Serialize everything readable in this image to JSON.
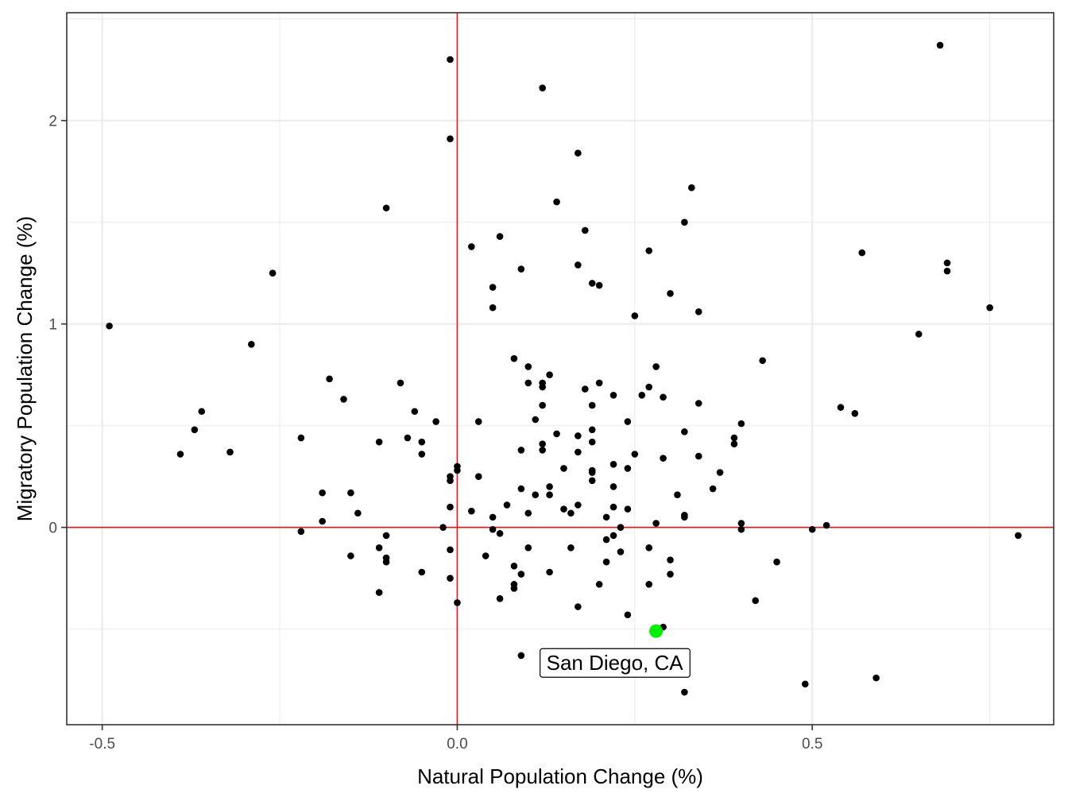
{
  "chart_data": {
    "type": "scatter",
    "title": "",
    "xlabel": "Natural Population Change (%)",
    "ylabel": "Migratory Population Change (%)",
    "xlim": [
      -0.55,
      0.84
    ],
    "ylim": [
      -0.97,
      2.53
    ],
    "x_ticks": [
      {
        "value": -0.5,
        "label": "-0.5"
      },
      {
        "value": 0.0,
        "label": "0.0"
      },
      {
        "value": 0.5,
        "label": "0.5"
      }
    ],
    "y_ticks": [
      {
        "value": 0,
        "label": "0"
      },
      {
        "value": 1,
        "label": "1"
      },
      {
        "value": 2,
        "label": "2"
      }
    ],
    "grid": true,
    "reference_lines": {
      "x": 0,
      "y": 0,
      "color": "#e41a1c"
    },
    "colors": {
      "points": "#000000",
      "highlight": "#00ee00",
      "reference": "#e41a1c",
      "panel_border": "#333333",
      "grid": "#ebebeb"
    },
    "highlight": {
      "label": "San Diego, CA",
      "x": 0.28,
      "y": -0.51
    },
    "points": [
      {
        "x": -0.49,
        "y": 0.99
      },
      {
        "x": -0.39,
        "y": 0.36
      },
      {
        "x": -0.37,
        "y": 0.48
      },
      {
        "x": -0.36,
        "y": 0.57
      },
      {
        "x": -0.32,
        "y": 0.37
      },
      {
        "x": -0.29,
        "y": 0.9
      },
      {
        "x": -0.26,
        "y": 1.25
      },
      {
        "x": -0.22,
        "y": 0.44
      },
      {
        "x": -0.22,
        "y": -0.02
      },
      {
        "x": -0.19,
        "y": 0.17
      },
      {
        "x": -0.19,
        "y": 0.03
      },
      {
        "x": -0.18,
        "y": 0.73
      },
      {
        "x": -0.16,
        "y": 0.63
      },
      {
        "x": -0.15,
        "y": 0.17
      },
      {
        "x": -0.15,
        "y": -0.14
      },
      {
        "x": -0.14,
        "y": 0.07
      },
      {
        "x": -0.11,
        "y": 0.42
      },
      {
        "x": -0.11,
        "y": -0.1
      },
      {
        "x": -0.11,
        "y": -0.32
      },
      {
        "x": -0.1,
        "y": -0.04
      },
      {
        "x": -0.1,
        "y": -0.15
      },
      {
        "x": -0.1,
        "y": -0.17
      },
      {
        "x": -0.1,
        "y": 1.57
      },
      {
        "x": -0.08,
        "y": 0.71
      },
      {
        "x": -0.07,
        "y": 0.44
      },
      {
        "x": -0.06,
        "y": 0.57
      },
      {
        "x": -0.05,
        "y": 0.42
      },
      {
        "x": -0.05,
        "y": 0.36
      },
      {
        "x": -0.05,
        "y": -0.22
      },
      {
        "x": -0.03,
        "y": 0.52
      },
      {
        "x": -0.02,
        "y": 0.0
      },
      {
        "x": -0.01,
        "y": 0.25
      },
      {
        "x": -0.01,
        "y": 0.23
      },
      {
        "x": -0.01,
        "y": 0.1
      },
      {
        "x": -0.01,
        "y": -0.11
      },
      {
        "x": -0.01,
        "y": -0.25
      },
      {
        "x": -0.01,
        "y": 1.91
      },
      {
        "x": -0.01,
        "y": 2.3
      },
      {
        "x": 0.0,
        "y": 0.3
      },
      {
        "x": 0.0,
        "y": 0.28
      },
      {
        "x": 0.0,
        "y": -0.37
      },
      {
        "x": 0.02,
        "y": 1.38
      },
      {
        "x": 0.02,
        "y": 0.08
      },
      {
        "x": 0.03,
        "y": 0.52
      },
      {
        "x": 0.03,
        "y": 0.25
      },
      {
        "x": 0.04,
        "y": -0.14
      },
      {
        "x": 0.05,
        "y": 1.18
      },
      {
        "x": 0.05,
        "y": 1.08
      },
      {
        "x": 0.05,
        "y": 0.05
      },
      {
        "x": 0.05,
        "y": -0.01
      },
      {
        "x": 0.06,
        "y": 1.43
      },
      {
        "x": 0.06,
        "y": -0.03
      },
      {
        "x": 0.06,
        "y": -0.35
      },
      {
        "x": 0.07,
        "y": 0.11
      },
      {
        "x": 0.08,
        "y": 0.83
      },
      {
        "x": 0.08,
        "y": -0.19
      },
      {
        "x": 0.08,
        "y": -0.3
      },
      {
        "x": 0.08,
        "y": -0.28
      },
      {
        "x": 0.09,
        "y": 1.27
      },
      {
        "x": 0.09,
        "y": 0.38
      },
      {
        "x": 0.09,
        "y": 0.19
      },
      {
        "x": 0.09,
        "y": -0.23
      },
      {
        "x": 0.09,
        "y": -0.63
      },
      {
        "x": 0.1,
        "y": 0.79
      },
      {
        "x": 0.1,
        "y": 0.71
      },
      {
        "x": 0.1,
        "y": 0.07
      },
      {
        "x": 0.1,
        "y": -0.1
      },
      {
        "x": 0.11,
        "y": 0.53
      },
      {
        "x": 0.11,
        "y": 0.16
      },
      {
        "x": 0.12,
        "y": 2.16
      },
      {
        "x": 0.12,
        "y": 0.71
      },
      {
        "x": 0.12,
        "y": 0.69
      },
      {
        "x": 0.12,
        "y": 0.6
      },
      {
        "x": 0.12,
        "y": 0.41
      },
      {
        "x": 0.12,
        "y": 0.38
      },
      {
        "x": 0.13,
        "y": 0.75
      },
      {
        "x": 0.13,
        "y": 0.2
      },
      {
        "x": 0.13,
        "y": 0.16
      },
      {
        "x": 0.13,
        "y": -0.22
      },
      {
        "x": 0.14,
        "y": 1.6
      },
      {
        "x": 0.14,
        "y": 0.46
      },
      {
        "x": 0.15,
        "y": 0.29
      },
      {
        "x": 0.15,
        "y": 0.09
      },
      {
        "x": 0.16,
        "y": 0.07
      },
      {
        "x": 0.16,
        "y": -0.1
      },
      {
        "x": 0.17,
        "y": 1.84
      },
      {
        "x": 0.17,
        "y": 1.29
      },
      {
        "x": 0.17,
        "y": 0.45
      },
      {
        "x": 0.17,
        "y": 0.37
      },
      {
        "x": 0.17,
        "y": 0.11
      },
      {
        "x": 0.17,
        "y": -0.39
      },
      {
        "x": 0.18,
        "y": 1.46
      },
      {
        "x": 0.18,
        "y": 0.68
      },
      {
        "x": 0.19,
        "y": 1.2
      },
      {
        "x": 0.19,
        "y": 0.6
      },
      {
        "x": 0.19,
        "y": 0.48
      },
      {
        "x": 0.19,
        "y": 0.42
      },
      {
        "x": 0.19,
        "y": 0.28
      },
      {
        "x": 0.19,
        "y": 0.27
      },
      {
        "x": 0.19,
        "y": 0.23
      },
      {
        "x": 0.2,
        "y": 1.19
      },
      {
        "x": 0.2,
        "y": 0.71
      },
      {
        "x": 0.2,
        "y": -0.28
      },
      {
        "x": 0.21,
        "y": 0.05
      },
      {
        "x": 0.21,
        "y": -0.06
      },
      {
        "x": 0.21,
        "y": -0.17
      },
      {
        "x": 0.22,
        "y": 0.65
      },
      {
        "x": 0.22,
        "y": 0.31
      },
      {
        "x": 0.22,
        "y": 0.2
      },
      {
        "x": 0.22,
        "y": 0.1
      },
      {
        "x": 0.22,
        "y": -0.04
      },
      {
        "x": 0.23,
        "y": 0.0
      },
      {
        "x": 0.23,
        "y": -0.12
      },
      {
        "x": 0.24,
        "y": 0.52
      },
      {
        "x": 0.24,
        "y": 0.29
      },
      {
        "x": 0.24,
        "y": 0.09
      },
      {
        "x": 0.24,
        "y": -0.43
      },
      {
        "x": 0.25,
        "y": 1.04
      },
      {
        "x": 0.25,
        "y": 0.36
      },
      {
        "x": 0.26,
        "y": 0.65
      },
      {
        "x": 0.27,
        "y": 1.36
      },
      {
        "x": 0.27,
        "y": 0.69
      },
      {
        "x": 0.27,
        "y": -0.1
      },
      {
        "x": 0.27,
        "y": -0.28
      },
      {
        "x": 0.28,
        "y": 0.79
      },
      {
        "x": 0.28,
        "y": 0.02
      },
      {
        "x": 0.29,
        "y": 0.64
      },
      {
        "x": 0.29,
        "y": 0.34
      },
      {
        "x": 0.29,
        "y": -0.49
      },
      {
        "x": 0.3,
        "y": 1.15
      },
      {
        "x": 0.3,
        "y": -0.16
      },
      {
        "x": 0.3,
        "y": -0.23
      },
      {
        "x": 0.31,
        "y": 0.16
      },
      {
        "x": 0.32,
        "y": 1.5
      },
      {
        "x": 0.32,
        "y": 0.47
      },
      {
        "x": 0.32,
        "y": 0.06
      },
      {
        "x": 0.32,
        "y": 0.05
      },
      {
        "x": 0.32,
        "y": -0.81
      },
      {
        "x": 0.33,
        "y": 1.67
      },
      {
        "x": 0.34,
        "y": 1.06
      },
      {
        "x": 0.34,
        "y": 0.61
      },
      {
        "x": 0.34,
        "y": 0.35
      },
      {
        "x": 0.36,
        "y": 0.19
      },
      {
        "x": 0.37,
        "y": 0.27
      },
      {
        "x": 0.39,
        "y": 0.44
      },
      {
        "x": 0.39,
        "y": 0.41
      },
      {
        "x": 0.4,
        "y": 0.51
      },
      {
        "x": 0.4,
        "y": 0.02
      },
      {
        "x": 0.4,
        "y": -0.01
      },
      {
        "x": 0.42,
        "y": -0.36
      },
      {
        "x": 0.43,
        "y": 0.82
      },
      {
        "x": 0.45,
        "y": -0.17
      },
      {
        "x": 0.49,
        "y": -0.77
      },
      {
        "x": 0.5,
        "y": -0.01
      },
      {
        "x": 0.52,
        "y": 0.01
      },
      {
        "x": 0.54,
        "y": 0.59
      },
      {
        "x": 0.56,
        "y": 0.56
      },
      {
        "x": 0.57,
        "y": 1.35
      },
      {
        "x": 0.59,
        "y": -0.74
      },
      {
        "x": 0.65,
        "y": 0.95
      },
      {
        "x": 0.68,
        "y": 2.37
      },
      {
        "x": 0.69,
        "y": 1.3
      },
      {
        "x": 0.69,
        "y": 1.26
      },
      {
        "x": 0.75,
        "y": 1.08
      },
      {
        "x": 0.79,
        "y": -0.04
      }
    ]
  }
}
